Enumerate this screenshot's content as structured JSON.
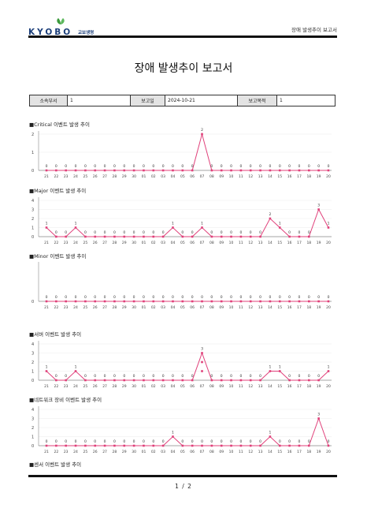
{
  "header": {
    "logo_text": "KYOBO",
    "logo_kr": "교보생명",
    "title": "장애 발생추이 보고서",
    "brand_color": "#1c3f7a",
    "leaf_color": "#3b9a3b"
  },
  "document": {
    "title": "장애 발생추이 보고서"
  },
  "info": {
    "dept_label": "소속부서",
    "dept_value": "1",
    "date_label": "보고일",
    "date_value": "2024-10-21",
    "purpose_label": "보고목적",
    "purpose_value": "1"
  },
  "sections": {
    "critical": "■Critical 이벤트 발생 추이",
    "major": "■Major 이벤트 발생 추이",
    "minor": "■Minor 이벤트 발생 추이",
    "server": "■서버 이벤트 발생 추이",
    "network": "■네트워크 장비 이벤트 발생 추이",
    "sensor": "■센서 이벤트 발생 추이"
  },
  "footer": {
    "page": "1 / 2"
  },
  "chart_data": [
    {
      "type": "line",
      "categories": [
        "21",
        "22",
        "23",
        "24",
        "25",
        "26",
        "27",
        "28",
        "29",
        "30",
        "01",
        "02",
        "03",
        "04",
        "05",
        "06",
        "07",
        "08",
        "09",
        "10",
        "11",
        "12",
        "13",
        "14",
        "15",
        "16",
        "17",
        "18",
        "19",
        "20"
      ],
      "values": [
        0,
        0,
        0,
        0,
        0,
        0,
        0,
        0,
        0,
        0,
        0,
        0,
        0,
        0,
        0,
        0,
        2,
        0,
        0,
        0,
        0,
        0,
        0,
        0,
        0,
        0,
        0,
        0,
        0,
        0
      ],
      "ylim": [
        0,
        2
      ],
      "yticks": [
        0,
        1,
        2
      ],
      "color": "#e0407a"
    },
    {
      "type": "line",
      "categories": [
        "21",
        "22",
        "23",
        "24",
        "25",
        "26",
        "27",
        "28",
        "29",
        "30",
        "01",
        "02",
        "03",
        "04",
        "05",
        "06",
        "07",
        "08",
        "09",
        "10",
        "11",
        "12",
        "13",
        "14",
        "15",
        "16",
        "17",
        "18",
        "19",
        "20"
      ],
      "values": [
        1,
        0,
        0,
        1,
        0,
        0,
        0,
        0,
        0,
        0,
        0,
        0,
        0,
        1,
        0,
        0,
        1,
        0,
        0,
        0,
        0,
        0,
        0,
        2,
        1,
        0,
        0,
        0,
        3,
        1
      ],
      "ylim": [
        0,
        4
      ],
      "yticks": [
        0,
        1,
        2,
        3,
        4
      ],
      "color": "#e0407a"
    },
    {
      "type": "line",
      "categories": [
        "21",
        "22",
        "23",
        "24",
        "25",
        "26",
        "27",
        "28",
        "29",
        "30",
        "01",
        "02",
        "03",
        "04",
        "05",
        "06",
        "07",
        "08",
        "09",
        "10",
        "11",
        "12",
        "13",
        "14",
        "15",
        "16",
        "17",
        "18",
        "19",
        "20"
      ],
      "values": [
        0,
        0,
        0,
        0,
        0,
        0,
        0,
        0,
        0,
        0,
        0,
        0,
        0,
        0,
        0,
        0,
        0,
        0,
        0,
        0,
        0,
        0,
        0,
        0,
        0,
        0,
        0,
        0,
        0,
        0
      ],
      "ylim": [
        0,
        1
      ],
      "yticks": [
        0
      ],
      "color": "#e0407a"
    },
    {
      "type": "line",
      "categories": [
        "21",
        "22",
        "23",
        "24",
        "25",
        "26",
        "27",
        "28",
        "29",
        "30",
        "01",
        "02",
        "03",
        "04",
        "05",
        "06",
        "07",
        "08",
        "09",
        "10",
        "11",
        "12",
        "13",
        "14",
        "15",
        "16",
        "17",
        "18",
        "19",
        "20"
      ],
      "values": [
        1,
        0,
        0,
        1,
        0,
        0,
        0,
        0,
        0,
        0,
        0,
        0,
        0,
        0,
        0,
        0,
        3,
        0,
        0,
        0,
        0,
        0,
        0,
        1,
        1,
        0,
        0,
        0,
        0,
        1
      ],
      "extra_points": [
        {
          "index": 16,
          "values": [
            2,
            1
          ]
        }
      ],
      "ylim": [
        0,
        4
      ],
      "yticks": [
        0,
        1,
        2,
        3,
        4
      ],
      "color": "#e0407a"
    },
    {
      "type": "line",
      "categories": [
        "21",
        "22",
        "23",
        "24",
        "25",
        "26",
        "27",
        "28",
        "29",
        "30",
        "01",
        "02",
        "03",
        "04",
        "05",
        "06",
        "07",
        "08",
        "09",
        "10",
        "11",
        "12",
        "13",
        "14",
        "15",
        "16",
        "17",
        "18",
        "19",
        "20"
      ],
      "values": [
        0,
        0,
        0,
        0,
        0,
        0,
        0,
        0,
        0,
        0,
        0,
        0,
        0,
        1,
        0,
        0,
        0,
        0,
        0,
        0,
        0,
        0,
        0,
        1,
        0,
        0,
        0,
        0,
        3,
        0
      ],
      "ylim": [
        0,
        4
      ],
      "yticks": [
        0,
        1,
        2,
        3,
        4
      ],
      "color": "#e0407a"
    }
  ]
}
